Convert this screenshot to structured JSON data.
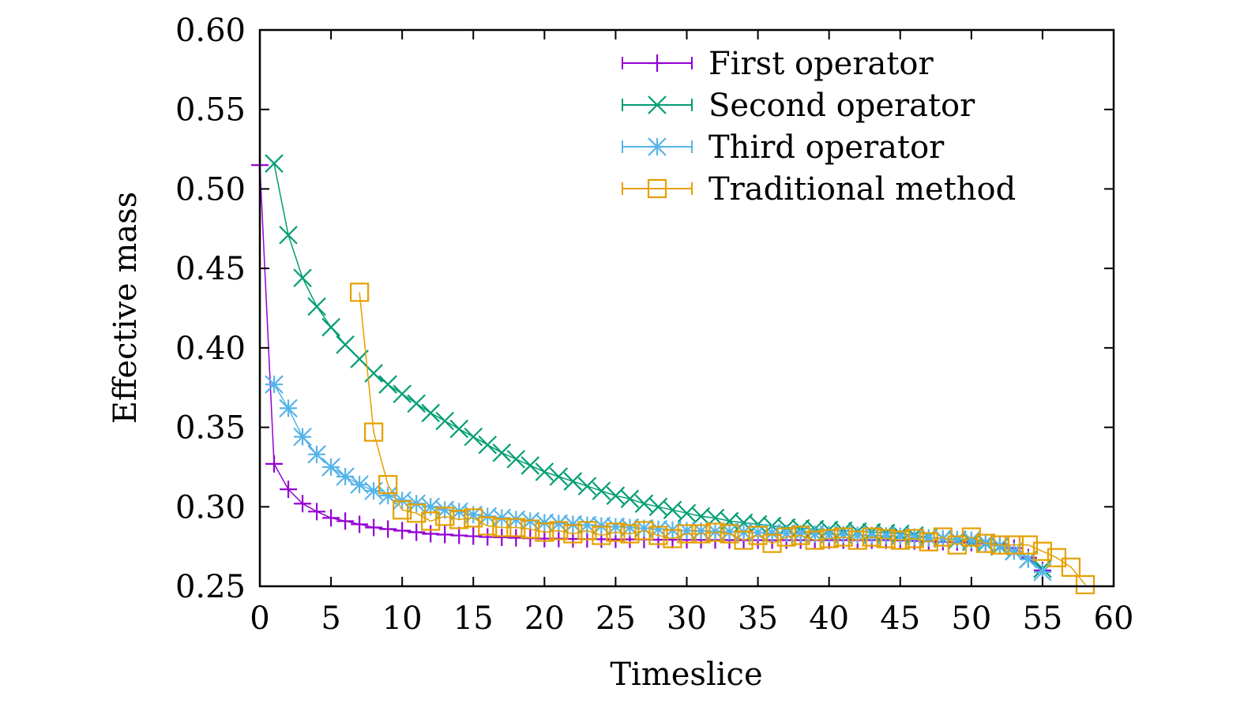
{
  "chart_data": {
    "type": "scatter",
    "title": "",
    "xlabel": "Timeslice",
    "ylabel": "Effective mass",
    "xlim": [
      0,
      60
    ],
    "ylim": [
      0.25,
      0.6
    ],
    "xticks": [
      "0",
      "5",
      "10",
      "15",
      "20",
      "25",
      "30",
      "35",
      "40",
      "45",
      "50",
      "55",
      "60"
    ],
    "yticks": [
      "0.25",
      "0.30",
      "0.35",
      "0.40",
      "0.45",
      "0.50",
      "0.55",
      "0.60"
    ],
    "legend_position": "top-right",
    "grid": false,
    "series": [
      {
        "name": "First operator",
        "marker": "plus",
        "color": "#9400d3",
        "x": [
          0,
          1,
          2,
          3,
          4,
          5,
          6,
          7,
          8,
          9,
          10,
          11,
          12,
          13,
          14,
          15,
          16,
          17,
          18,
          19,
          20,
          21,
          22,
          23,
          24,
          25,
          26,
          27,
          28,
          29,
          30,
          31,
          32,
          33,
          34,
          35,
          36,
          37,
          38,
          39,
          40,
          41,
          42,
          43,
          44,
          45,
          46,
          47,
          48,
          49,
          50,
          51,
          52,
          53,
          54,
          55
        ],
        "y": [
          0.515,
          0.327,
          0.311,
          0.302,
          0.297,
          0.293,
          0.291,
          0.289,
          0.287,
          0.286,
          0.285,
          0.284,
          0.283,
          0.2825,
          0.282,
          0.2815,
          0.281,
          0.2808,
          0.2805,
          0.2802,
          0.28,
          0.28,
          0.2798,
          0.2797,
          0.2796,
          0.2795,
          0.2795,
          0.2794,
          0.2793,
          0.2793,
          0.2792,
          0.2792,
          0.2791,
          0.2791,
          0.279,
          0.279,
          0.279,
          0.279,
          0.279,
          0.279,
          0.279,
          0.279,
          0.279,
          0.279,
          0.279,
          0.2788,
          0.2785,
          0.2783,
          0.278,
          0.2778,
          0.2775,
          0.277,
          0.2765,
          0.274,
          0.268,
          0.26
        ]
      },
      {
        "name": "Second operator",
        "marker": "cross",
        "color": "#009e73",
        "x": [
          1,
          2,
          3,
          4,
          5,
          6,
          7,
          8,
          9,
          10,
          11,
          12,
          13,
          14,
          15,
          16,
          17,
          18,
          19,
          20,
          21,
          22,
          23,
          24,
          25,
          26,
          27,
          28,
          29,
          30,
          31,
          32,
          33,
          34,
          35,
          36,
          37,
          38,
          39,
          40,
          41,
          42,
          43,
          44,
          45,
          46,
          47,
          48,
          49,
          50,
          51,
          52,
          53,
          54,
          55
        ],
        "y": [
          0.516,
          0.471,
          0.444,
          0.426,
          0.413,
          0.402,
          0.393,
          0.384,
          0.377,
          0.371,
          0.365,
          0.359,
          0.354,
          0.349,
          0.344,
          0.339,
          0.334,
          0.33,
          0.326,
          0.322,
          0.319,
          0.316,
          0.313,
          0.31,
          0.307,
          0.305,
          0.302,
          0.3,
          0.298,
          0.296,
          0.294,
          0.293,
          0.291,
          0.29,
          0.289,
          0.288,
          0.287,
          0.2865,
          0.286,
          0.2855,
          0.285,
          0.2845,
          0.284,
          0.2835,
          0.283,
          0.282,
          0.281,
          0.28,
          0.279,
          0.278,
          0.277,
          0.275,
          0.272,
          0.267,
          0.261
        ]
      },
      {
        "name": "Third operator",
        "marker": "asterisk",
        "color": "#56b4e9",
        "x": [
          1,
          2,
          3,
          4,
          5,
          6,
          7,
          8,
          9,
          10,
          11,
          12,
          13,
          14,
          15,
          16,
          17,
          18,
          19,
          20,
          21,
          22,
          23,
          24,
          25,
          26,
          27,
          28,
          29,
          30,
          31,
          32,
          33,
          34,
          35,
          36,
          37,
          38,
          39,
          40,
          41,
          42,
          43,
          44,
          45,
          46,
          47,
          48,
          49,
          50,
          51,
          52,
          53,
          54,
          55
        ],
        "y": [
          0.377,
          0.362,
          0.344,
          0.333,
          0.325,
          0.319,
          0.314,
          0.31,
          0.307,
          0.304,
          0.302,
          0.3,
          0.298,
          0.297,
          0.295,
          0.294,
          0.293,
          0.292,
          0.291,
          0.29,
          0.2895,
          0.289,
          0.2885,
          0.288,
          0.2875,
          0.287,
          0.2865,
          0.286,
          0.2855,
          0.285,
          0.2848,
          0.2845,
          0.2843,
          0.284,
          0.2838,
          0.2835,
          0.2833,
          0.283,
          0.2828,
          0.2826,
          0.2824,
          0.2822,
          0.282,
          0.2818,
          0.2815,
          0.281,
          0.2805,
          0.28,
          0.2795,
          0.279,
          0.2775,
          0.2755,
          0.272,
          0.267,
          0.259
        ]
      },
      {
        "name": "Traditional method",
        "marker": "square",
        "color": "#e69f00",
        "x": [
          7,
          8,
          9,
          10,
          11,
          12,
          13,
          14,
          15,
          16,
          17,
          18,
          19,
          20,
          21,
          22,
          23,
          24,
          25,
          26,
          27,
          28,
          29,
          30,
          31,
          32,
          33,
          34,
          35,
          36,
          37,
          38,
          39,
          40,
          41,
          42,
          43,
          44,
          45,
          46,
          47,
          48,
          49,
          50,
          51,
          52,
          53,
          54,
          55,
          56,
          57,
          58
        ],
        "y": [
          0.435,
          0.347,
          0.314,
          0.298,
          0.296,
          0.291,
          0.294,
          0.292,
          0.293,
          0.288,
          0.287,
          0.287,
          0.286,
          0.284,
          0.285,
          0.283,
          0.285,
          0.282,
          0.284,
          0.283,
          0.285,
          0.282,
          0.28,
          0.283,
          0.283,
          0.284,
          0.283,
          0.279,
          0.282,
          0.277,
          0.281,
          0.282,
          0.279,
          0.28,
          0.281,
          0.279,
          0.281,
          0.28,
          0.279,
          0.28,
          0.278,
          0.281,
          0.276,
          0.281,
          0.277,
          0.276,
          0.276,
          0.276,
          0.272,
          0.268,
          0.262,
          0.251
        ]
      }
    ]
  }
}
